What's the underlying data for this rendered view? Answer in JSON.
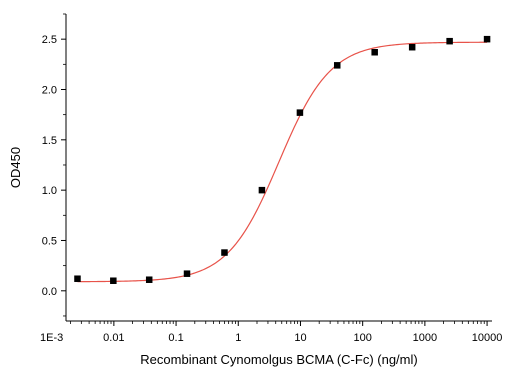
{
  "chart_data": {
    "type": "scatter",
    "title": "",
    "xlabel": "Recombinant Cynomolgus BCMA (C-Fc) (ng/ml)",
    "ylabel": "OD450",
    "x_scale": "log",
    "xlim": [
      0.0017,
      12000
    ],
    "ylim": [
      -0.3,
      2.75
    ],
    "x_ticks": [
      0.001,
      0.01,
      0.1,
      1,
      10,
      100,
      1000,
      10000
    ],
    "x_tick_labels": [
      "1E-3",
      "0.01",
      "0.1",
      "1",
      "10",
      "100",
      "1000",
      "10000"
    ],
    "y_ticks": [
      0,
      0.5,
      1,
      1.5,
      2,
      2.5
    ],
    "y_tick_labels": [
      "0.0",
      "0.5",
      "1.0",
      "1.5",
      "2.0",
      "2.5"
    ],
    "grid": false,
    "legend": false,
    "series": [
      {
        "points": [
          {
            "x": 0.0026,
            "y": 0.12
          },
          {
            "x": 0.0098,
            "y": 0.1
          },
          {
            "x": 0.037,
            "y": 0.11
          },
          {
            "x": 0.15,
            "y": 0.17
          },
          {
            "x": 0.6,
            "y": 0.38
          },
          {
            "x": 2.4,
            "y": 1.0
          },
          {
            "x": 9.8,
            "y": 1.77
          },
          {
            "x": 39,
            "y": 2.24
          },
          {
            "x": 156,
            "y": 2.37
          },
          {
            "x": 625,
            "y": 2.42
          },
          {
            "x": 2500,
            "y": 2.48
          },
          {
            "x": 10000,
            "y": 2.5
          }
        ],
        "marker_color": "#000000"
      }
    ],
    "fit_curve": {
      "model": "4PL",
      "bottom": 0.09,
      "top": 2.47,
      "ec50": 4.5,
      "hill": 1.05,
      "color": "#e8534a"
    }
  }
}
